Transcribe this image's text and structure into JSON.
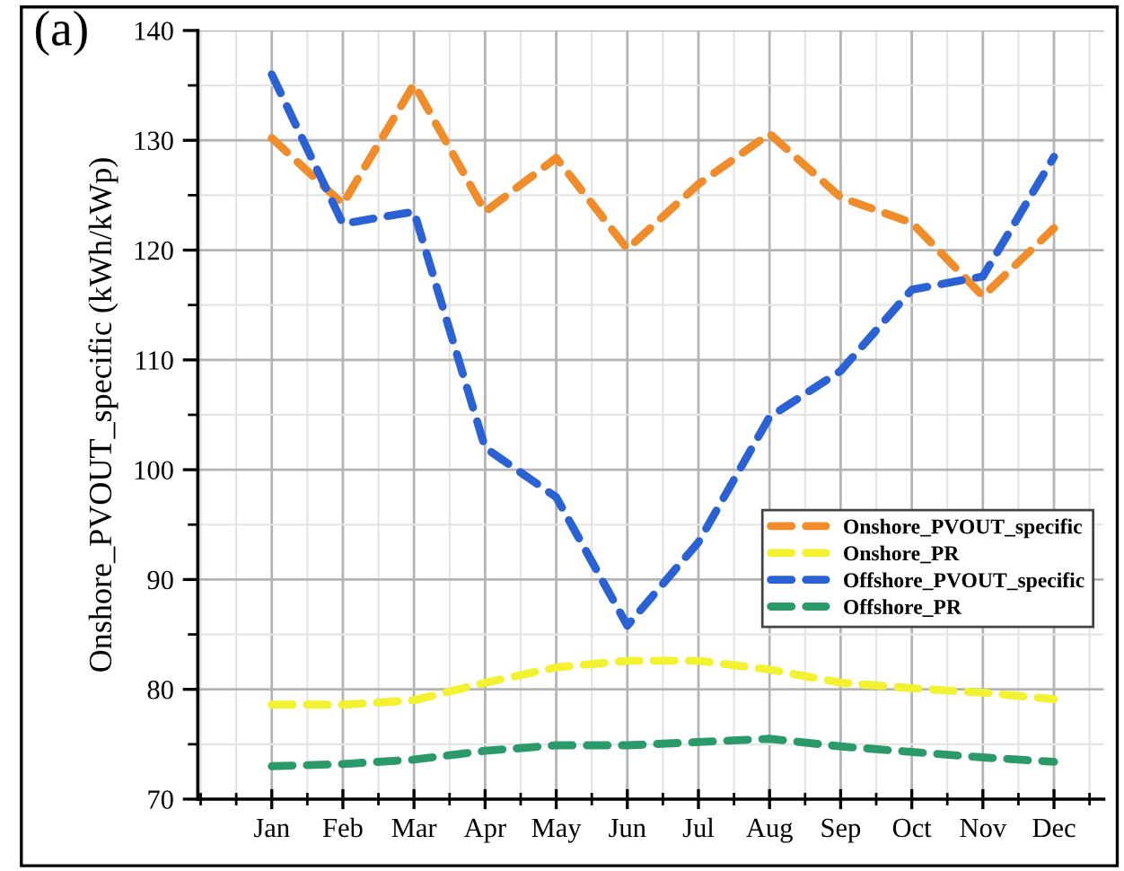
{
  "chart_data": {
    "type": "line",
    "ylabel": "Onshore_PVOUT_specific (kWh/kWp)",
    "annotations": [
      "(a)"
    ],
    "categories": [
      "Jan",
      "Feb",
      "Mar",
      "Apr",
      "May",
      "Jun",
      "Jul",
      "Aug",
      "Sep",
      "Oct",
      "Nov",
      "Dec"
    ],
    "series": [
      {
        "name": "Onshore_PVOUT_specific",
        "color": "#f08c2a",
        "values": [
          130.2,
          124.2,
          135.1,
          123.5,
          128.4,
          120.1,
          126,
          130.6,
          124.8,
          122.5,
          115.8,
          122
        ]
      },
      {
        "name": "Onshore_PR",
        "color": "#f2f230",
        "values": [
          78.6,
          78.6,
          79.0,
          80.6,
          82.0,
          82.6,
          82.6,
          81.8,
          80.6,
          80.1,
          79.7,
          79.1
        ]
      },
      {
        "name": "Offshore_PVOUT_specific",
        "color": "#2a62d6",
        "values": [
          136,
          122.4,
          123.5,
          102,
          97.5,
          85.8,
          93.4,
          104.8,
          109,
          116.4,
          117.6,
          128.5
        ]
      },
      {
        "name": "Offshore_PR",
        "color": "#2a9a6a",
        "values": [
          73.0,
          73.2,
          73.6,
          74.4,
          74.9,
          74.9,
          75.2,
          75.5,
          74.8,
          74.3,
          73.8,
          73.4
        ]
      }
    ],
    "ylim": [
      70,
      140
    ],
    "yticks": [
      70,
      80,
      90,
      100,
      110,
      120,
      130,
      140
    ],
    "grid": true,
    "legend": "right",
    "line_style": "dashed",
    "marker": "none"
  }
}
